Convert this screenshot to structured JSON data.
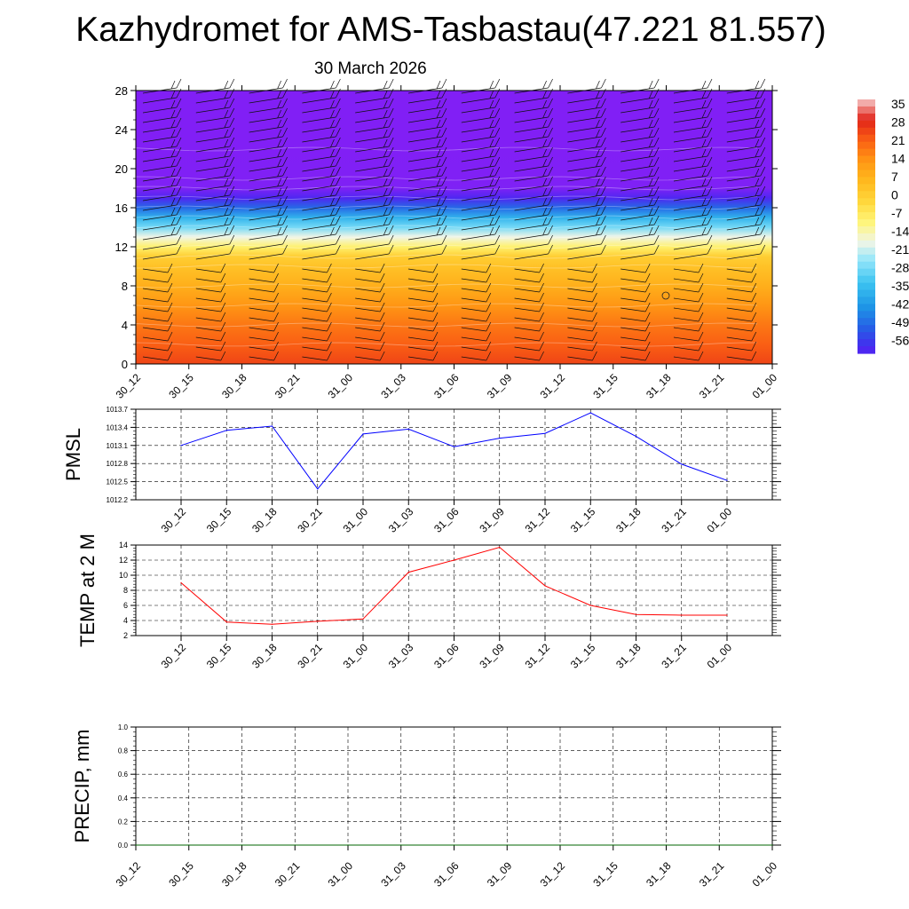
{
  "title": "Kazhydromet for AMS-Tasbastau(47.221 81.557)",
  "subtitle": "30 March 2026",
  "colorbar": {
    "labels": [
      "35",
      "28",
      "21",
      "14",
      "7",
      "0",
      "-7",
      "-14",
      "-21",
      "-28",
      "-35",
      "-42",
      "-49",
      "-56"
    ]
  },
  "chart_data": [
    {
      "type": "heatmap",
      "name": "temperature-cross-section",
      "title": "",
      "categories": [
        "30_12",
        "30_15",
        "30_18",
        "30_21",
        "31_00",
        "31_03",
        "31_06",
        "31_09",
        "31_12",
        "31_15",
        "31_18",
        "31_21",
        "01_00"
      ],
      "yticks": [
        0,
        4,
        8,
        12,
        16,
        20,
        24,
        28
      ],
      "ylim": [
        0,
        28
      ],
      "color_scale_min": -56,
      "color_scale_max": 35,
      "levels": [
        0,
        2,
        4,
        6,
        8,
        10,
        11,
        12,
        13,
        14,
        15,
        16,
        17,
        18,
        19,
        22,
        28
      ],
      "profile": [
        24,
        21,
        18,
        14,
        9,
        5,
        2,
        -6,
        -14,
        -23,
        -31,
        -42,
        -51,
        -57,
        -60,
        -61,
        -61
      ],
      "notes": "wind barbs overlaid on temperature shading"
    },
    {
      "type": "line",
      "name": "pmsl",
      "title": "",
      "xlabel": "",
      "ylabel": "PMSL",
      "categories": [
        "30_12",
        "30_15",
        "30_18",
        "30_21",
        "31_00",
        "31_03",
        "31_06",
        "31_09",
        "31_12",
        "31_15",
        "31_18",
        "31_21",
        "01_00"
      ],
      "series": [
        {
          "name": "PMSL",
          "color": "#0000ff",
          "values": [
            1013.1,
            1013.35,
            1013.42,
            1012.38,
            1013.29,
            1013.37,
            1013.08,
            1013.22,
            1013.3,
            1013.64,
            1013.25,
            1012.79,
            1012.52
          ]
        }
      ],
      "ylim": [
        1012.2,
        1013.7
      ],
      "yticks": [
        1012.2,
        1012.5,
        1012.8,
        1013.1,
        1013.4,
        1013.7
      ],
      "ytick_labels": [
        "1012.2",
        "1012.5",
        "1012.8",
        "1013.1",
        "1013.4",
        "1013.7"
      ],
      "grid": true
    },
    {
      "type": "line",
      "name": "temp-2m",
      "title": "",
      "xlabel": "",
      "ylabel": "TEMP at 2 M",
      "categories": [
        "30_12",
        "30_15",
        "30_18",
        "30_21",
        "31_00",
        "31_03",
        "31_06",
        "31_09",
        "31_12",
        "31_15",
        "31_18",
        "31_21",
        "01_00"
      ],
      "series": [
        {
          "name": "TEMP at 2 M",
          "color": "#ff0000",
          "values": [
            9.0,
            3.8,
            3.5,
            3.9,
            4.2,
            10.4,
            12.0,
            13.7,
            8.6,
            6.0,
            4.8,
            4.7,
            4.7
          ]
        }
      ],
      "ylim": [
        2,
        14
      ],
      "yticks": [
        2,
        4,
        6,
        8,
        10,
        12,
        14
      ],
      "ytick_labels": [
        "2",
        "4",
        "6",
        "8",
        "10",
        "12",
        "14"
      ],
      "grid": true
    },
    {
      "type": "line",
      "name": "precip",
      "title": "",
      "xlabel": "",
      "ylabel": "PRECIP, mm",
      "categories": [
        "30_12",
        "30_15",
        "30_18",
        "30_21",
        "31_00",
        "31_03",
        "31_06",
        "31_09",
        "31_12",
        "31_15",
        "31_18",
        "31_21",
        "01_00"
      ],
      "series": [
        {
          "name": "PRECIP, mm",
          "color": "#006400",
          "values": [
            0,
            0,
            0,
            0,
            0,
            0,
            0,
            0,
            0,
            0,
            0,
            0,
            0
          ]
        }
      ],
      "ylim": [
        0,
        1
      ],
      "yticks": [
        0,
        0.2,
        0.4,
        0.6,
        0.8,
        1.0
      ],
      "ytick_labels": [
        "0.0",
        "0.2",
        "0.4",
        "0.6",
        "0.8",
        "1.0"
      ],
      "grid": true
    }
  ]
}
